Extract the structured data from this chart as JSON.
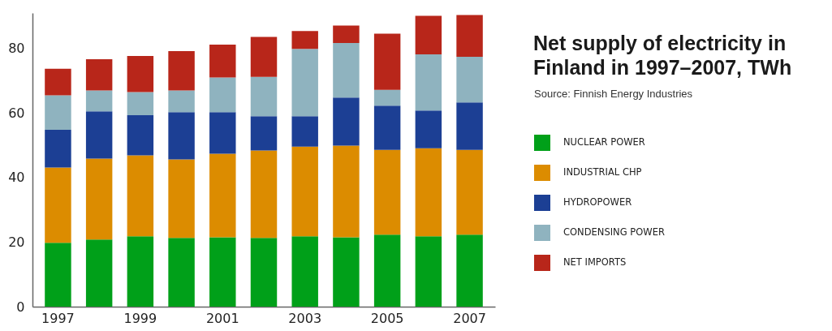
{
  "chart_data": {
    "type": "bar",
    "stacked": true,
    "title": "Net supply of electricity in Finland in 1997–2007, TWh",
    "annotations": [
      "Source: Finnish Energy Industries"
    ],
    "categories": [
      "1997",
      null,
      "1999",
      null,
      "2001",
      null,
      "2003",
      null,
      "2005",
      null,
      "2007"
    ],
    "ylim": [
      0,
      91
    ],
    "yticks": [
      0,
      20,
      40,
      60,
      80
    ],
    "legend": "right",
    "series": [
      {
        "name": "NUCLEAR POWER",
        "color": "#00a019",
        "values": [
          19.8,
          20.8,
          21.8,
          21.3,
          21.5,
          21.3,
          21.8,
          21.5,
          22.3,
          21.8,
          22.3
        ]
      },
      {
        "name": "INDUSTRIAL CHP",
        "color": "#dc8c00",
        "values": [
          23.3,
          25.1,
          25.1,
          24.3,
          25.9,
          27.1,
          27.8,
          28.4,
          26.3,
          27.3,
          26.3
        ]
      },
      {
        "name": "HYDROPOWER",
        "color": "#1c3f94",
        "values": [
          11.7,
          14.6,
          12.4,
          14.7,
          12.9,
          10.6,
          9.4,
          14.9,
          13.7,
          11.7,
          14.7
        ]
      },
      {
        "name": "CONDENSING POWER",
        "color": "#8fb3bf",
        "values": [
          10.7,
          6.5,
          7.2,
          6.7,
          10.7,
          12.2,
          20.9,
          16.9,
          4.9,
          17.4,
          14.1
        ]
      },
      {
        "name": "NET IMPORTS",
        "color": "#b8261a",
        "values": [
          8.2,
          9.7,
          11.2,
          12.2,
          10.2,
          12.4,
          5.5,
          5.4,
          17.4,
          11.9,
          13.0
        ]
      }
    ]
  }
}
